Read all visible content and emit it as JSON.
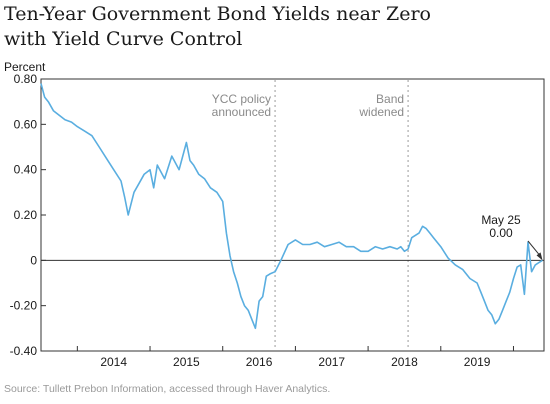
{
  "title_line1": "Ten-Year Government Bond Yields near Zero",
  "title_line2": "with Yield Curve Control",
  "source": "Source: Tullett Prebon Information, accessed through Haver Analytics.",
  "chart_data": {
    "type": "line",
    "ylabel": "Percent",
    "ylim": [
      -0.4,
      0.8
    ],
    "xlim": [
      2013.5,
      2020.42
    ],
    "yticks": [
      0.8,
      0.6,
      0.4,
      0.2,
      0,
      -0.2,
      -0.4
    ],
    "ytick_labels": [
      "0.80",
      "0.60",
      "0.40",
      "0.20",
      "0",
      "-0.20",
      "-0.40"
    ],
    "xticks": [
      2014,
      2015,
      2016,
      2017,
      2018,
      2019
    ],
    "xtick_labels": [
      "2014",
      "2015",
      "2016",
      "2017",
      "2018",
      "2019"
    ],
    "grid": false,
    "line_color": "#5aaee0",
    "event_lines": [
      {
        "x": 2016.72,
        "label_lines": [
          "YCC policy",
          "announced"
        ]
      },
      {
        "x": 2018.55,
        "label_lines": [
          "Band",
          "widened"
        ]
      }
    ],
    "annotation": {
      "lines": [
        "May 25",
        "0.00"
      ],
      "x": 2020.4,
      "y": 0.0
    },
    "series": [
      {
        "x": [
          2013.5,
          2013.55,
          2013.6,
          2013.67,
          2013.75,
          2013.83,
          2013.92,
          2014.0,
          2014.1,
          2014.2,
          2014.3,
          2014.4,
          2014.5,
          2014.6,
          2014.65,
          2014.7,
          2014.78,
          2014.85,
          2014.92,
          2015.0,
          2015.05,
          2015.1,
          2015.2,
          2015.3,
          2015.4,
          2015.5,
          2015.55,
          2015.6,
          2015.67,
          2015.75,
          2015.83,
          2015.92,
          2016.0,
          2016.05,
          2016.1,
          2016.15,
          2016.2,
          2016.25,
          2016.3,
          2016.35,
          2016.4,
          2016.45,
          2016.5,
          2016.55,
          2016.6,
          2016.65,
          2016.72,
          2016.8,
          2016.9,
          2017.0,
          2017.1,
          2017.2,
          2017.3,
          2017.4,
          2017.5,
          2017.6,
          2017.7,
          2017.8,
          2017.9,
          2018.0,
          2018.1,
          2018.2,
          2018.3,
          2018.4,
          2018.45,
          2018.5,
          2018.55,
          2018.6,
          2018.7,
          2018.75,
          2018.8,
          2018.85,
          2018.9,
          2019.0,
          2019.1,
          2019.2,
          2019.3,
          2019.4,
          2019.5,
          2019.55,
          2019.6,
          2019.65,
          2019.7,
          2019.75,
          2019.8,
          2019.85,
          2019.9,
          2019.95,
          2020.0,
          2020.05,
          2020.1,
          2020.15,
          2020.2,
          2020.25,
          2020.3,
          2020.35,
          2020.4
        ],
        "values": [
          0.78,
          0.72,
          0.7,
          0.66,
          0.64,
          0.62,
          0.61,
          0.59,
          0.57,
          0.55,
          0.5,
          0.45,
          0.4,
          0.35,
          0.28,
          0.2,
          0.3,
          0.34,
          0.38,
          0.4,
          0.32,
          0.42,
          0.36,
          0.46,
          0.4,
          0.52,
          0.44,
          0.42,
          0.38,
          0.36,
          0.32,
          0.3,
          0.26,
          0.12,
          0.02,
          -0.05,
          -0.1,
          -0.16,
          -0.2,
          -0.22,
          -0.26,
          -0.3,
          -0.18,
          -0.16,
          -0.07,
          -0.06,
          -0.05,
          0.0,
          0.07,
          0.09,
          0.07,
          0.07,
          0.08,
          0.06,
          0.07,
          0.08,
          0.06,
          0.06,
          0.04,
          0.04,
          0.06,
          0.05,
          0.06,
          0.05,
          0.06,
          0.04,
          0.05,
          0.1,
          0.12,
          0.15,
          0.14,
          0.12,
          0.1,
          0.06,
          0.01,
          -0.02,
          -0.04,
          -0.08,
          -0.1,
          -0.14,
          -0.18,
          -0.22,
          -0.24,
          -0.28,
          -0.26,
          -0.22,
          -0.18,
          -0.14,
          -0.08,
          -0.03,
          -0.02,
          -0.15,
          0.08,
          -0.05,
          -0.02,
          -0.01,
          0.0
        ]
      }
    ]
  }
}
